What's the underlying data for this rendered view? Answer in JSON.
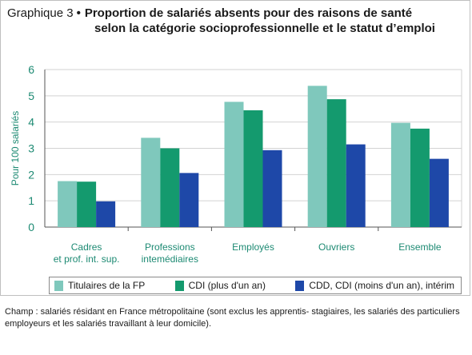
{
  "header": {
    "prefix": "Graphique 3",
    "bullet": "•",
    "title_line1": "Proportion de salariés absents pour des raisons de santé",
    "title_line2": "selon la catégorie socioprofessionnelle et le statut d’emploi"
  },
  "footnote": "Champ : salariés résidant en France métropolitaine (sont exclus les apprentis- stagiaires, les salariés des particuliers employeurs et les salariés travaillant à leur domicile).",
  "chart_data": {
    "type": "bar",
    "title": "Proportion de salariés absents pour des raisons de santé selon la catégorie socioprofessionnelle et le statut d’emploi",
    "xlabel": "",
    "ylabel": "Pour 100 salariés",
    "ylim": [
      0,
      6
    ],
    "yticks": [
      "0",
      "1",
      "2",
      "3",
      "4",
      "5",
      "6"
    ],
    "grid": true,
    "legend_position": "bottom",
    "categories": [
      [
        "Cadres",
        "et prof. int. sup."
      ],
      [
        "Professions",
        "intemédiaires"
      ],
      [
        "Employés"
      ],
      [
        "Ouvriers"
      ],
      [
        "Ensemble"
      ]
    ],
    "series": [
      {
        "name": "Titulaires de la FP",
        "color": "#7fc8bc",
        "values": [
          1.75,
          3.4,
          4.77,
          5.38,
          3.97
        ]
      },
      {
        "name": "CDI (plus d'un an)",
        "color": "#149a6e",
        "values": [
          1.73,
          3.0,
          4.45,
          4.87,
          3.75
        ]
      },
      {
        "name": "CDD, CDI (moins d'un an), intérim",
        "color": "#1e48a8",
        "values": [
          0.98,
          2.06,
          2.93,
          3.15,
          2.6
        ]
      }
    ],
    "colors": {
      "axis_text": "#1d8a73",
      "grid": "#d2d2d2",
      "axis": "#555555"
    }
  }
}
